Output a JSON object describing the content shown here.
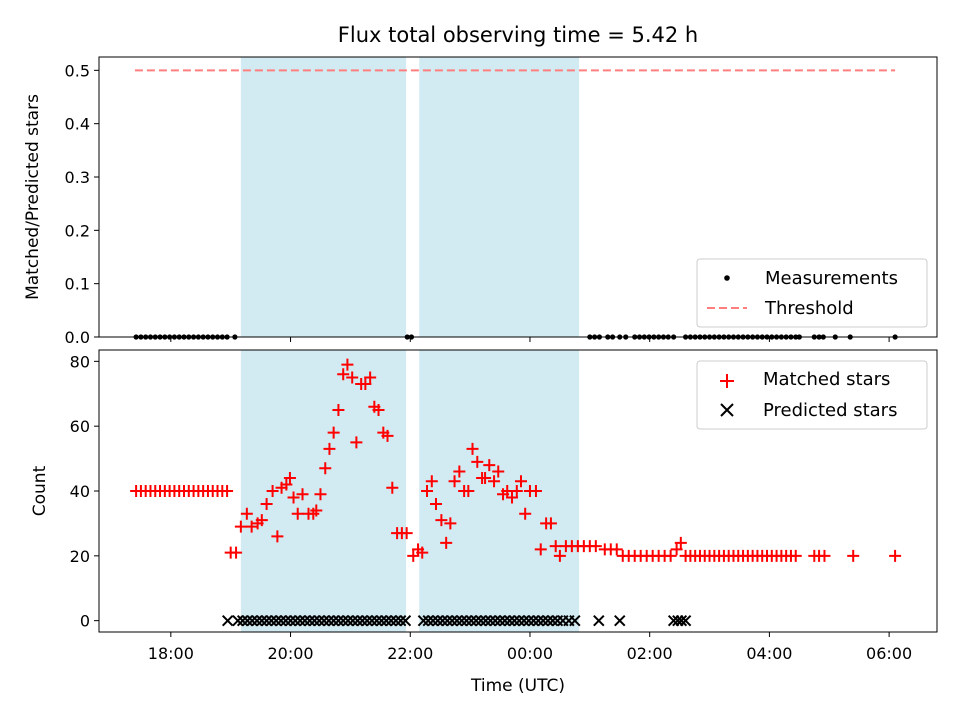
{
  "chart_data": [
    {
      "type": "scatter",
      "title": "Flux total observing time = 5.42 h",
      "xlabel": "",
      "ylabel": "Matched/Predicted stars",
      "ylim": [
        0,
        0.525
      ],
      "yticks": [
        "0.0",
        "0.1",
        "0.2",
        "0.3",
        "0.4",
        "0.5"
      ],
      "ytick_values": [
        0,
        0.1,
        0.2,
        0.3,
        0.4,
        0.5
      ],
      "xlim_hours": [
        16.8,
        30.8
      ],
      "legend_location": "lower-right",
      "shaded_intervals_hours": [
        [
          19.17,
          21.93
        ],
        [
          22.15,
          24.82
        ]
      ],
      "threshold": {
        "name": "Threshold",
        "value": 0.5,
        "x_range_hours": [
          17.4,
          30.1
        ],
        "color": "#ff7f7f"
      },
      "series": [
        {
          "name": "Measurements",
          "marker": "dot",
          "color": "#000000",
          "x_hours": [
            17.42,
            17.5,
            17.58,
            17.66,
            17.74,
            17.82,
            17.9,
            17.98,
            18.06,
            18.14,
            18.22,
            18.3,
            18.38,
            18.46,
            18.54,
            18.62,
            18.7,
            18.78,
            18.86,
            18.94,
            19.07,
            21.95,
            22.02,
            25.0,
            25.08,
            25.16,
            25.3,
            25.38,
            25.5,
            25.6,
            25.75,
            25.83,
            25.91,
            25.99,
            26.07,
            26.15,
            26.23,
            26.31,
            26.4,
            26.6,
            26.68,
            26.76,
            26.84,
            26.92,
            27.0,
            27.08,
            27.16,
            27.24,
            27.32,
            27.4,
            27.48,
            27.56,
            27.64,
            27.72,
            27.8,
            27.88,
            27.96,
            28.04,
            28.12,
            28.2,
            28.28,
            28.36,
            28.44,
            28.5,
            28.75,
            28.83,
            28.9,
            29.1,
            29.35,
            30.1
          ],
          "y_value_all": 0.0
        }
      ],
      "legend": [
        "Measurements",
        "Threshold"
      ]
    },
    {
      "type": "scatter",
      "title": "",
      "xlabel": "Time (UTC)",
      "ylabel": "Count",
      "ylim": [
        -3.5,
        83.5
      ],
      "yticks": [
        "0",
        "20",
        "40",
        "60",
        "80"
      ],
      "ytick_values": [
        0,
        20,
        40,
        60,
        80
      ],
      "xticks": [
        "18:00",
        "20:00",
        "22:00",
        "00:00",
        "02:00",
        "04:00",
        "06:00"
      ],
      "xtick_values_hours": [
        18,
        20,
        22,
        24,
        26,
        28,
        30
      ],
      "xlim_hours": [
        16.8,
        30.8
      ],
      "legend_location": "upper-right",
      "shaded_intervals_hours": [
        [
          19.17,
          21.93
        ],
        [
          22.15,
          24.82
        ]
      ],
      "series": [
        {
          "name": "Matched stars",
          "marker": "plus",
          "color": "#ff0000",
          "points": [
            [
              17.42,
              40
            ],
            [
              17.5,
              40
            ],
            [
              17.58,
              40
            ],
            [
              17.66,
              40
            ],
            [
              17.74,
              40
            ],
            [
              17.82,
              40
            ],
            [
              17.9,
              40
            ],
            [
              17.98,
              40
            ],
            [
              18.06,
              40
            ],
            [
              18.14,
              40
            ],
            [
              18.22,
              40
            ],
            [
              18.3,
              40
            ],
            [
              18.38,
              40
            ],
            [
              18.46,
              40
            ],
            [
              18.54,
              40
            ],
            [
              18.62,
              40
            ],
            [
              18.7,
              40
            ],
            [
              18.78,
              40
            ],
            [
              18.86,
              40
            ],
            [
              18.94,
              40
            ],
            [
              19.0,
              21
            ],
            [
              19.09,
              21
            ],
            [
              19.17,
              29
            ],
            [
              19.27,
              33
            ],
            [
              19.35,
              29
            ],
            [
              19.45,
              30
            ],
            [
              19.52,
              31
            ],
            [
              19.6,
              36
            ],
            [
              19.7,
              40
            ],
            [
              19.78,
              26
            ],
            [
              19.85,
              41
            ],
            [
              19.93,
              42
            ],
            [
              19.99,
              44
            ],
            [
              20.05,
              38
            ],
            [
              20.12,
              33
            ],
            [
              20.2,
              39
            ],
            [
              20.3,
              33
            ],
            [
              20.38,
              33
            ],
            [
              20.43,
              34
            ],
            [
              20.5,
              39
            ],
            [
              20.58,
              47
            ],
            [
              20.65,
              53
            ],
            [
              20.72,
              58
            ],
            [
              20.8,
              65
            ],
            [
              20.88,
              76
            ],
            [
              20.95,
              79
            ],
            [
              21.03,
              75
            ],
            [
              21.1,
              55
            ],
            [
              21.18,
              73
            ],
            [
              21.25,
              73
            ],
            [
              21.33,
              75
            ],
            [
              21.4,
              66
            ],
            [
              21.47,
              65
            ],
            [
              21.55,
              58
            ],
            [
              21.62,
              57
            ],
            [
              21.7,
              41
            ],
            [
              21.78,
              27
            ],
            [
              21.86,
              27
            ],
            [
              21.94,
              27
            ],
            [
              22.05,
              20
            ],
            [
              22.13,
              22
            ],
            [
              22.2,
              21
            ],
            [
              22.28,
              40
            ],
            [
              22.36,
              43
            ],
            [
              22.43,
              36
            ],
            [
              22.52,
              31
            ],
            [
              22.6,
              24
            ],
            [
              22.67,
              30
            ],
            [
              22.74,
              43
            ],
            [
              22.82,
              46
            ],
            [
              22.9,
              40
            ],
            [
              22.97,
              40
            ],
            [
              23.04,
              53
            ],
            [
              23.12,
              49
            ],
            [
              23.2,
              44
            ],
            [
              23.25,
              44
            ],
            [
              23.32,
              48
            ],
            [
              23.4,
              43
            ],
            [
              23.47,
              46
            ],
            [
              23.55,
              39
            ],
            [
              23.62,
              40
            ],
            [
              23.7,
              38
            ],
            [
              23.78,
              40
            ],
            [
              23.85,
              43
            ],
            [
              23.92,
              33
            ],
            [
              24.0,
              40
            ],
            [
              24.1,
              40
            ],
            [
              24.18,
              22
            ],
            [
              24.27,
              30
            ],
            [
              24.35,
              30
            ],
            [
              24.43,
              23
            ],
            [
              24.5,
              20
            ],
            [
              24.6,
              23
            ],
            [
              24.7,
              23
            ],
            [
              24.8,
              23
            ],
            [
              24.9,
              23
            ],
            [
              25.0,
              23
            ],
            [
              25.1,
              23
            ],
            [
              25.25,
              22
            ],
            [
              25.35,
              22
            ],
            [
              25.45,
              22
            ],
            [
              25.55,
              20
            ],
            [
              25.65,
              20
            ],
            [
              25.75,
              20
            ],
            [
              25.85,
              20
            ],
            [
              25.95,
              20
            ],
            [
              26.05,
              20
            ],
            [
              26.15,
              20
            ],
            [
              26.25,
              20
            ],
            [
              26.35,
              20
            ],
            [
              26.45,
              22
            ],
            [
              26.52,
              24
            ],
            [
              26.6,
              20
            ],
            [
              26.68,
              20
            ],
            [
              26.76,
              20
            ],
            [
              26.84,
              20
            ],
            [
              26.92,
              20
            ],
            [
              27.0,
              20
            ],
            [
              27.08,
              20
            ],
            [
              27.16,
              20
            ],
            [
              27.24,
              20
            ],
            [
              27.32,
              20
            ],
            [
              27.4,
              20
            ],
            [
              27.48,
              20
            ],
            [
              27.56,
              20
            ],
            [
              27.64,
              20
            ],
            [
              27.72,
              20
            ],
            [
              27.8,
              20
            ],
            [
              27.88,
              20
            ],
            [
              27.96,
              20
            ],
            [
              28.04,
              20
            ],
            [
              28.12,
              20
            ],
            [
              28.2,
              20
            ],
            [
              28.28,
              20
            ],
            [
              28.36,
              20
            ],
            [
              28.44,
              20
            ],
            [
              28.75,
              20
            ],
            [
              28.83,
              20
            ],
            [
              28.92,
              20
            ],
            [
              29.4,
              20
            ],
            [
              30.1,
              20
            ]
          ]
        },
        {
          "name": "Predicted stars",
          "marker": "x",
          "color": "#000000",
          "points": [
            [
              18.95,
              0
            ],
            [
              19.12,
              0
            ],
            [
              19.2,
              0
            ],
            [
              19.28,
              0
            ],
            [
              19.36,
              0
            ],
            [
              19.44,
              0
            ],
            [
              19.52,
              0
            ],
            [
              19.6,
              0
            ],
            [
              19.68,
              0
            ],
            [
              19.76,
              0
            ],
            [
              19.84,
              0
            ],
            [
              19.92,
              0
            ],
            [
              20.0,
              0
            ],
            [
              20.08,
              0
            ],
            [
              20.16,
              0
            ],
            [
              20.24,
              0
            ],
            [
              20.32,
              0
            ],
            [
              20.4,
              0
            ],
            [
              20.48,
              0
            ],
            [
              20.56,
              0
            ],
            [
              20.64,
              0
            ],
            [
              20.72,
              0
            ],
            [
              20.8,
              0
            ],
            [
              20.88,
              0
            ],
            [
              20.96,
              0
            ],
            [
              21.04,
              0
            ],
            [
              21.12,
              0
            ],
            [
              21.2,
              0
            ],
            [
              21.28,
              0
            ],
            [
              21.36,
              0
            ],
            [
              21.44,
              0
            ],
            [
              21.52,
              0
            ],
            [
              21.6,
              0
            ],
            [
              21.68,
              0
            ],
            [
              21.76,
              0
            ],
            [
              21.84,
              0
            ],
            [
              21.92,
              0
            ],
            [
              22.22,
              0
            ],
            [
              22.3,
              0
            ],
            [
              22.38,
              0
            ],
            [
              22.46,
              0
            ],
            [
              22.54,
              0
            ],
            [
              22.62,
              0
            ],
            [
              22.7,
              0
            ],
            [
              22.78,
              0
            ],
            [
              22.86,
              0
            ],
            [
              22.94,
              0
            ],
            [
              23.02,
              0
            ],
            [
              23.1,
              0
            ],
            [
              23.18,
              0
            ],
            [
              23.26,
              0
            ],
            [
              23.34,
              0
            ],
            [
              23.42,
              0
            ],
            [
              23.5,
              0
            ],
            [
              23.58,
              0
            ],
            [
              23.66,
              0
            ],
            [
              23.74,
              0
            ],
            [
              23.82,
              0
            ],
            [
              23.9,
              0
            ],
            [
              23.98,
              0
            ],
            [
              24.06,
              0
            ],
            [
              24.14,
              0
            ],
            [
              24.22,
              0
            ],
            [
              24.3,
              0
            ],
            [
              24.38,
              0
            ],
            [
              24.46,
              0
            ],
            [
              24.55,
              0
            ],
            [
              24.65,
              0
            ],
            [
              24.75,
              0
            ],
            [
              25.15,
              0
            ],
            [
              25.5,
              0
            ],
            [
              26.4,
              0
            ],
            [
              26.47,
              0
            ],
            [
              26.53,
              0
            ],
            [
              26.6,
              0
            ]
          ]
        }
      ],
      "legend": [
        "Matched stars",
        "Predicted stars"
      ]
    }
  ],
  "colors": {
    "shade": "#add8e6",
    "matched": "#ff0000",
    "predicted": "#000000",
    "threshold": "#ff7f7f"
  }
}
